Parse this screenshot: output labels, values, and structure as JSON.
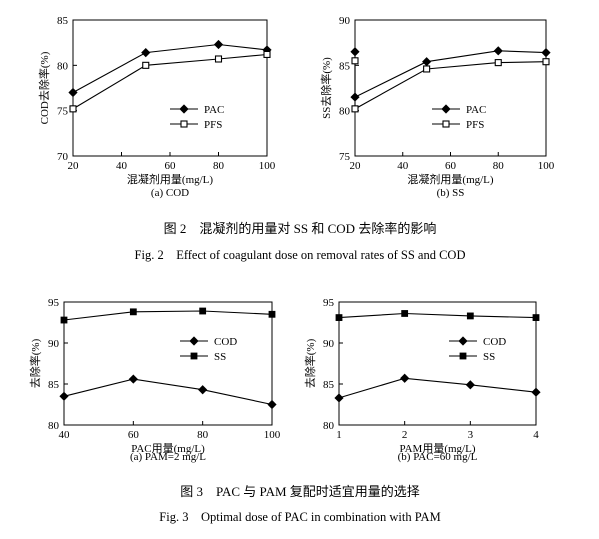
{
  "figure2": {
    "caption_cn": "图 2　混凝剂的用量对 SS 和 COD 去除率的影响",
    "caption_en": "Fig. 2　Effect of coagulant dose on removal rates of SS and COD"
  },
  "figure3": {
    "caption_cn": "图 3　PAC 与 PAM 复配时适宜用量的选择",
    "caption_en": "Fig. 3　Optimal dose of PAC in combination with PAM"
  },
  "chart_data": [
    {
      "type": "line",
      "panel_label": "(a) COD",
      "xlabel": "混凝剂用量(mg/L)",
      "ylabel": "COD去除率(%)",
      "xlim": [
        20,
        100
      ],
      "ylim": [
        70,
        85
      ],
      "xticks": [
        20,
        40,
        60,
        80,
        100
      ],
      "yticks": [
        70,
        75,
        80,
        85
      ],
      "grid": false,
      "legend_position": "center-right",
      "series": [
        {
          "name": "PAC",
          "marker": "diamond",
          "x": [
            20,
            50,
            80,
            100
          ],
          "y": [
            77.0,
            81.4,
            82.3,
            81.7
          ]
        },
        {
          "name": "PFS",
          "marker": "open-square",
          "x": [
            20,
            50,
            80,
            100
          ],
          "y": [
            75.2,
            80.0,
            80.7,
            81.2
          ]
        }
      ]
    },
    {
      "type": "line",
      "panel_label": "(b) SS",
      "xlabel": "混凝剂用量(mg/L)",
      "ylabel": "SS去除率(%)",
      "xlim": [
        20,
        100
      ],
      "ylim": [
        75,
        90
      ],
      "xticks": [
        20,
        40,
        60,
        80,
        100
      ],
      "yticks": [
        75,
        80,
        85,
        90
      ],
      "grid": false,
      "legend_position": "center-right",
      "series": [
        {
          "name": "PAC",
          "marker": "diamond",
          "x": [
            20,
            20,
            50,
            80,
            100
          ],
          "y": [
            86.5,
            81.5,
            85.4,
            86.6,
            86.4
          ]
        },
        {
          "name": "PFS",
          "marker": "open-square",
          "x": [
            20,
            20,
            50,
            80,
            100
          ],
          "y": [
            85.5,
            80.2,
            84.6,
            85.3,
            85.4
          ]
        }
      ]
    },
    {
      "type": "line",
      "panel_label": "(a) PAM=2 mg/L",
      "xlabel": "PAC用量(mg/L)",
      "ylabel": "去除率(%)",
      "xlim": [
        40,
        100
      ],
      "ylim": [
        80,
        95
      ],
      "xticks": [
        40,
        60,
        80,
        100
      ],
      "yticks": [
        80,
        85,
        90,
        95
      ],
      "grid": false,
      "legend_position": "center-right",
      "series": [
        {
          "name": "COD",
          "marker": "diamond",
          "x": [
            40,
            60,
            80,
            100
          ],
          "y": [
            83.5,
            85.6,
            84.3,
            82.5
          ]
        },
        {
          "name": "SS",
          "marker": "filled-square",
          "x": [
            40,
            60,
            80,
            100
          ],
          "y": [
            92.8,
            93.8,
            93.9,
            93.5
          ]
        }
      ]
    },
    {
      "type": "line",
      "panel_label": "(b) PAC=60 mg/L",
      "xlabel": "PAM用量(mg/L)",
      "ylabel": "去除率(%)",
      "xlim": [
        1,
        4
      ],
      "ylim": [
        80,
        95
      ],
      "xticks": [
        1,
        2,
        3,
        4
      ],
      "yticks": [
        80,
        85,
        90,
        95
      ],
      "grid": false,
      "legend_position": "center-right",
      "series": [
        {
          "name": "COD",
          "marker": "diamond",
          "x": [
            1,
            2,
            3,
            4
          ],
          "y": [
            83.3,
            85.7,
            84.9,
            84.0
          ]
        },
        {
          "name": "SS",
          "marker": "filled-square",
          "x": [
            1,
            2,
            3,
            4
          ],
          "y": [
            93.1,
            93.6,
            93.3,
            93.1
          ]
        }
      ]
    }
  ]
}
